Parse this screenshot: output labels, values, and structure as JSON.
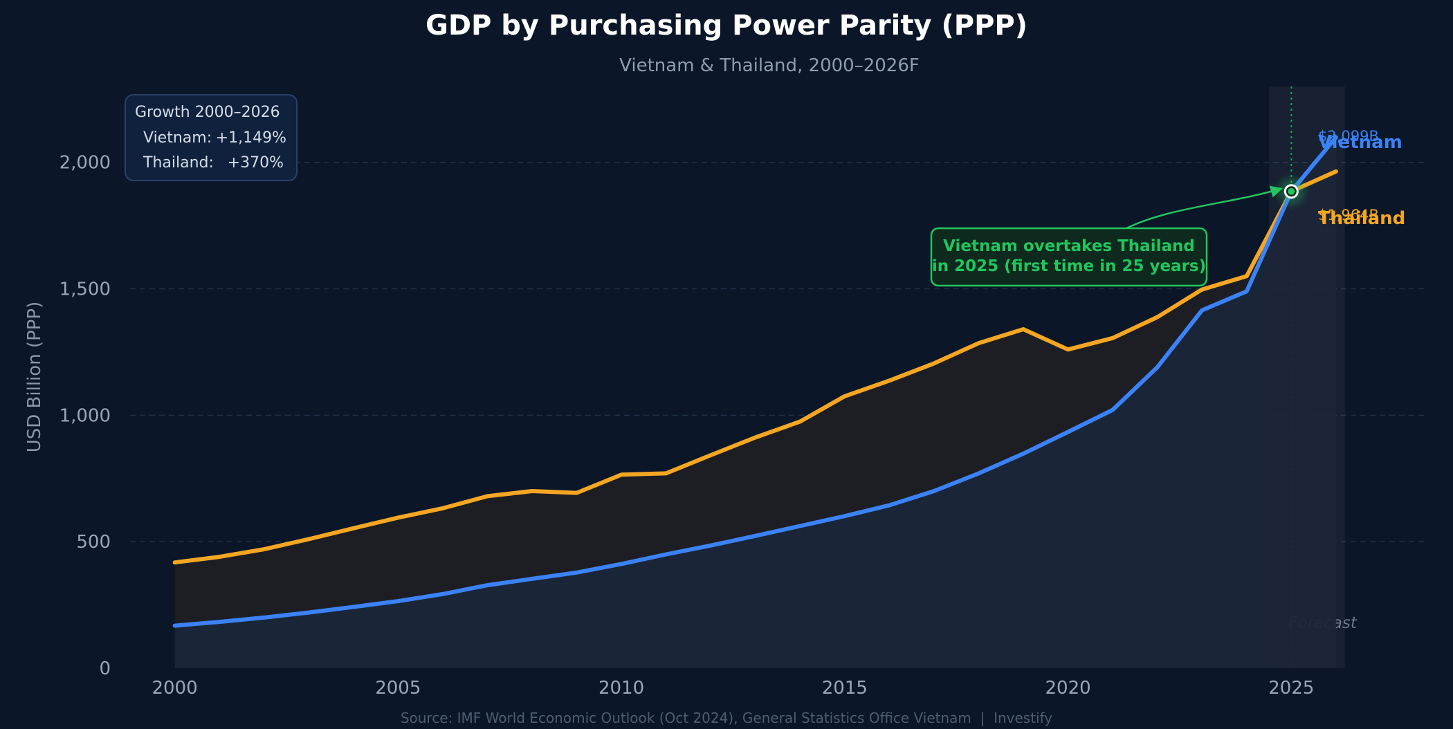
{
  "chart_data": {
    "type": "line",
    "title": "GDP by Purchasing Power Parity (PPP)",
    "subtitle": "Vietnam & Thailand, 2000–2026F",
    "ylabel": "USD Billion (PPP)",
    "xlabel": "",
    "xlim": [
      1999,
      2028
    ],
    "ylim": [
      0,
      2300
    ],
    "x_ticks": [
      2000,
      2005,
      2010,
      2015,
      2020,
      2025
    ],
    "x_tick_labels": [
      "2000",
      "2005",
      "2010",
      "2015",
      "2020",
      "2025"
    ],
    "y_ticks": [
      0,
      500,
      1000,
      1500,
      2000
    ],
    "y_tick_labels": [
      "0",
      "500",
      "1,000",
      "1,500",
      "2,000"
    ],
    "grid": "horizontal dashed",
    "x": [
      2000,
      2001,
      2002,
      2003,
      2004,
      2005,
      2006,
      2007,
      2008,
      2009,
      2010,
      2011,
      2012,
      2013,
      2014,
      2015,
      2016,
      2017,
      2018,
      2019,
      2020,
      2021,
      2022,
      2023,
      2024,
      2025,
      2026
    ],
    "series": [
      {
        "name": "Vietnam",
        "color": "#3b82f6",
        "values": [
          168,
          183,
          200,
          220,
          242,
          265,
          293,
          328,
          353,
          378,
          412,
          450,
          485,
          523,
          562,
          601,
          644,
          700,
          770,
          848,
          934,
          1021,
          1190,
          1415,
          1490,
          1885,
          2099
        ],
        "end_label": "$2,099B"
      },
      {
        "name": "Thailand",
        "color": "#f5a623",
        "values": [
          418,
          440,
          470,
          510,
          553,
          595,
          632,
          680,
          700,
          693,
          765,
          770,
          842,
          912,
          975,
          1075,
          1137,
          1205,
          1285,
          1340,
          1260,
          1305,
          1388,
          1497,
          1550,
          1885,
          1964
        ],
        "end_label": "$1,964B"
      }
    ],
    "forecast_region": {
      "x_from": 2024.5,
      "x_to": 2026.2,
      "label": "Forecast"
    },
    "forecast_line_x": 2025,
    "crossover": {
      "x": 2025,
      "y": 1885,
      "annotation_lines": [
        "Vietnam overtakes Thailand",
        "in 2025 (first time in 25 years)"
      ],
      "color": "#22c55e"
    },
    "growth_box": {
      "title": "Growth 2000–2026",
      "rows": [
        {
          "label": "Vietnam:",
          "value": "+1,149%"
        },
        {
          "label": "Thailand:",
          "value": "+370%"
        }
      ]
    },
    "source": "Source: IMF World Economic Outlook (Oct 2024), General Statistics Office Vietnam  |  Investify",
    "colors": {
      "background": "#0b1628",
      "grid": "#1f3048",
      "axis_text": "#9aa7b8",
      "gap_fill": "#1d1f24",
      "vietnam_fill": "#1b2638",
      "growth_box_bg": "#10213d",
      "growth_box_border": "#2a4068"
    }
  }
}
